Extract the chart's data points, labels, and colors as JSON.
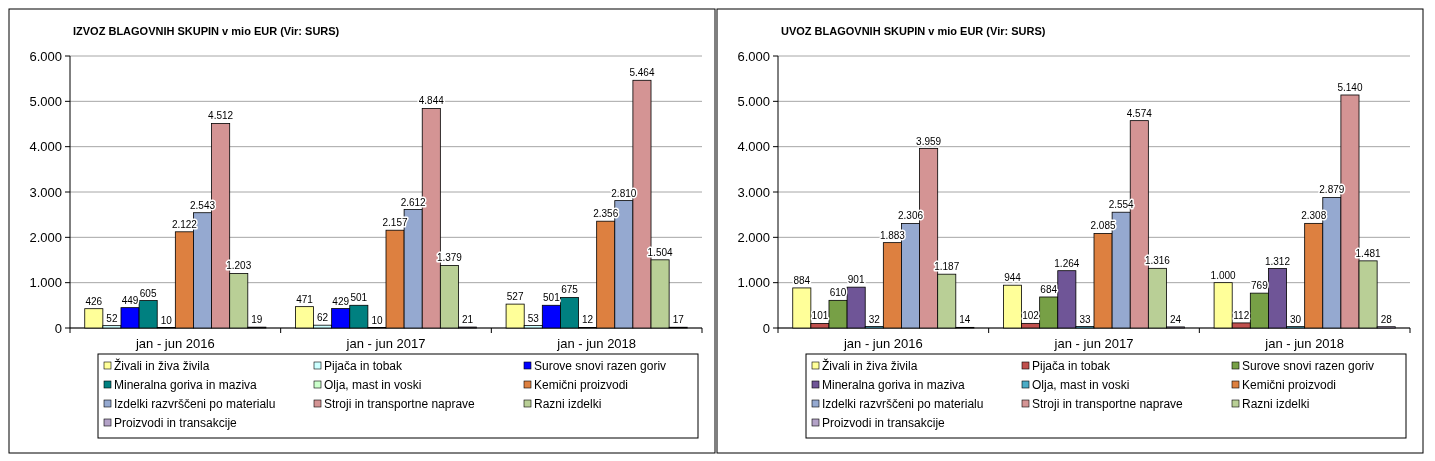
{
  "chart_data": [
    {
      "type": "bar",
      "title": "IZVOZ BLAGOVNIH SKUPIN v mio EUR (Vir: SURS)",
      "categories": [
        "jan - jun 2016",
        "jan - jun 2017",
        "jan - jun 2018"
      ],
      "ylim": [
        0,
        6000
      ],
      "yticks": [
        0,
        {
          "value": 1000,
          "label": "1.000"
        },
        {
          "value": 2000,
          "label": "2.000"
        },
        {
          "value": 3000,
          "label": "3.000"
        },
        {
          "value": 4000,
          "label": "4.000"
        },
        {
          "value": 5000,
          "label": "5.000"
        },
        {
          "value": 6000,
          "label": "6.000"
        }
      ],
      "grid": "y",
      "legend": "bottom",
      "series": [
        {
          "name": "Živali in živa živila",
          "color": "#ffff99",
          "values": [
            426,
            471,
            527
          ],
          "value_labels": [
            "426",
            "471",
            "527"
          ]
        },
        {
          "name": "Pijača in tobak",
          "color": "#ccffff",
          "values": [
            52,
            62,
            53
          ],
          "value_labels": [
            "52",
            "62",
            "53"
          ]
        },
        {
          "name": "Surove snovi razen goriv",
          "color": "#0000ff",
          "values": [
            449,
            429,
            501
          ],
          "value_labels": [
            "449",
            "429",
            "501"
          ]
        },
        {
          "name": "Mineralna goriva in maziva",
          "color": "#008080",
          "values": [
            605,
            501,
            675
          ],
          "value_labels": [
            "605",
            "501",
            "675"
          ]
        },
        {
          "name": "Olja, mast in voski",
          "color": "#ccffcc",
          "values": [
            10,
            10,
            12
          ],
          "value_labels": [
            "10",
            "10",
            "12"
          ]
        },
        {
          "name": "Kemični proizvodi",
          "color": "#dd8040",
          "values": [
            2122,
            2157,
            2356
          ],
          "value_labels": [
            "2.122",
            "2.157",
            "2.356"
          ]
        },
        {
          "name": "Izdelki razvrščeni po materialu",
          "color": "#95a9d0",
          "values": [
            2543,
            2612,
            2810
          ],
          "value_labels": [
            "2.543",
            "2.612",
            "2.810"
          ]
        },
        {
          "name": "Stroji in transportne naprave",
          "color": "#d49494",
          "values": [
            4512,
            4844,
            5464
          ],
          "value_labels": [
            "4.512",
            "4.844",
            "5.464"
          ]
        },
        {
          "name": "Razni izdelki",
          "color": "#b9cf96",
          "values": [
            1203,
            1379,
            1504
          ],
          "value_labels": [
            "1.203",
            "1.379",
            "1.504"
          ]
        },
        {
          "name": "Proizvodi in transakcije",
          "color": "#b3a2c7",
          "values": [
            19,
            21,
            17
          ],
          "value_labels": [
            "19",
            "21",
            "17"
          ]
        }
      ]
    },
    {
      "type": "bar",
      "title": "UVOZ BLAGOVNIH SKUPIN v mio EUR (Vir: SURS)",
      "categories": [
        "jan - jun 2016",
        "jan - jun 2017",
        "jan - jun 2018"
      ],
      "ylim": [
        0,
        6000
      ],
      "yticks": [
        0,
        {
          "value": 1000,
          "label": "1.000"
        },
        {
          "value": 2000,
          "label": "2.000"
        },
        {
          "value": 3000,
          "label": "3.000"
        },
        {
          "value": 4000,
          "label": "4.000"
        },
        {
          "value": 5000,
          "label": "5.000"
        },
        {
          "value": 6000,
          "label": "6.000"
        }
      ],
      "grid": "y",
      "legend": "bottom",
      "series": [
        {
          "name": "Živali in živa živila",
          "color": "#ffff99",
          "values": [
            884,
            944,
            1000
          ],
          "value_labels": [
            "884",
            "944",
            "1.000"
          ]
        },
        {
          "name": "Pijača in tobak",
          "color": "#c0504d",
          "values": [
            101,
            102,
            112
          ],
          "value_labels": [
            "101",
            "102",
            "112"
          ]
        },
        {
          "name": "Surove snovi razen goriv",
          "color": "#77a046",
          "values": [
            610,
            684,
            769
          ],
          "value_labels": [
            "610",
            "684",
            "769"
          ]
        },
        {
          "name": "Mineralna goriva in maziva",
          "color": "#6f5597",
          "values": [
            901,
            1264,
            1312
          ],
          "value_labels": [
            "901",
            "1.264",
            "1.312"
          ]
        },
        {
          "name": "Olja, mast in voski",
          "color": "#4bacc6",
          "values": [
            32,
            33,
            30
          ],
          "value_labels": [
            "32",
            "33",
            "30"
          ]
        },
        {
          "name": "Kemični proizvodi",
          "color": "#dd8040",
          "values": [
            1883,
            2085,
            2308
          ],
          "value_labels": [
            "1.883",
            "2.085",
            "2.308"
          ]
        },
        {
          "name": "Izdelki razvrščeni po materialu",
          "color": "#95a9d0",
          "values": [
            2306,
            2554,
            2879
          ],
          "value_labels": [
            "2.306",
            "2.554",
            "2.879"
          ]
        },
        {
          "name": "Stroji in transportne naprave",
          "color": "#d49494",
          "values": [
            3959,
            4574,
            5140
          ],
          "value_labels": [
            "3.959",
            "4.574",
            "5.140"
          ]
        },
        {
          "name": "Razni izdelki",
          "color": "#b9cf96",
          "values": [
            1187,
            1316,
            1481
          ],
          "value_labels": [
            "1.187",
            "1.316",
            "1.481"
          ]
        },
        {
          "name": "Proizvodi in transakcije",
          "color": "#b3a2c7",
          "values": [
            14,
            24,
            28
          ],
          "value_labels": [
            "14",
            "24",
            "28"
          ]
        }
      ]
    }
  ]
}
